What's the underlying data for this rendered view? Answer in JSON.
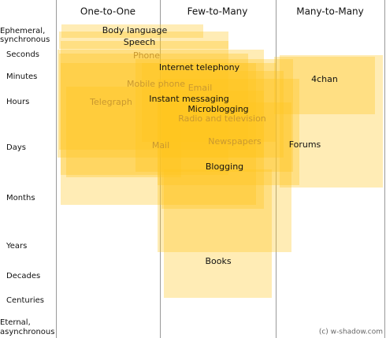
{
  "columns": [
    "One-to-One",
    "Few-to-Many",
    "Many-to-Many"
  ],
  "rows": [
    [
      "Ephemeral,",
      "synchronous"
    ],
    [
      "Seconds"
    ],
    [
      "Minutes"
    ],
    [
      "Hours"
    ],
    [
      "Days"
    ],
    [
      "Months"
    ],
    [
      "Years"
    ],
    [
      "Decades"
    ],
    [
      "Centuries"
    ],
    [
      "Eternal,",
      "asynchronous"
    ]
  ],
  "items": [
    "Body language",
    "Speech",
    "Phone",
    "Internet telephony",
    "Mobile phone",
    "Email",
    "Instant messaging",
    "Telegraph",
    "Microblogging",
    "Radio and television",
    "4chan",
    "Forums",
    "Mail",
    "Newspapers",
    "Blogging",
    "Books"
  ],
  "credit": "(c) w-shadow.com"
}
